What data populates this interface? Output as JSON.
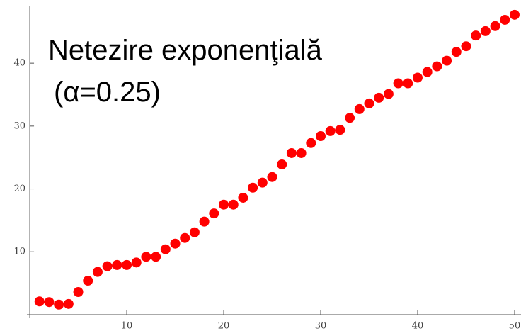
{
  "chart_data": {
    "type": "scatter",
    "title": "Netezire exponenţială",
    "subtitle": "(α=0.25)",
    "color": "#ff0000",
    "x": [
      1,
      2,
      3,
      4,
      5,
      6,
      7,
      8,
      9,
      10,
      11,
      12,
      13,
      14,
      15,
      16,
      17,
      18,
      19,
      20,
      21,
      22,
      23,
      24,
      25,
      26,
      27,
      28,
      29,
      30,
      31,
      32,
      33,
      34,
      35,
      36,
      37,
      38,
      39,
      40,
      41,
      42,
      43,
      44,
      45,
      46,
      47,
      48,
      49,
      50
    ],
    "values": [
      2.1,
      2.0,
      1.6,
      1.7,
      3.6,
      5.4,
      6.8,
      7.7,
      7.9,
      7.9,
      8.3,
      9.2,
      9.2,
      10.4,
      11.3,
      12.2,
      13.1,
      14.8,
      16.1,
      17.5,
      17.5,
      18.6,
      20.2,
      21.0,
      21.9,
      23.9,
      25.7,
      25.7,
      27.3,
      28.4,
      29.2,
      29.4,
      31.3,
      32.7,
      33.6,
      34.5,
      35.1,
      36.8,
      36.8,
      37.7,
      38.6,
      39.5,
      40.4,
      41.8,
      42.7,
      44.4,
      45.1,
      45.9,
      46.9,
      47.7
    ],
    "xlim": [
      -3.07,
      50.66
    ],
    "ylim": [
      -2.6,
      50.05
    ],
    "xticks": [
      10,
      20,
      30,
      40,
      50
    ],
    "yticks": [
      10,
      20,
      30,
      40
    ]
  }
}
